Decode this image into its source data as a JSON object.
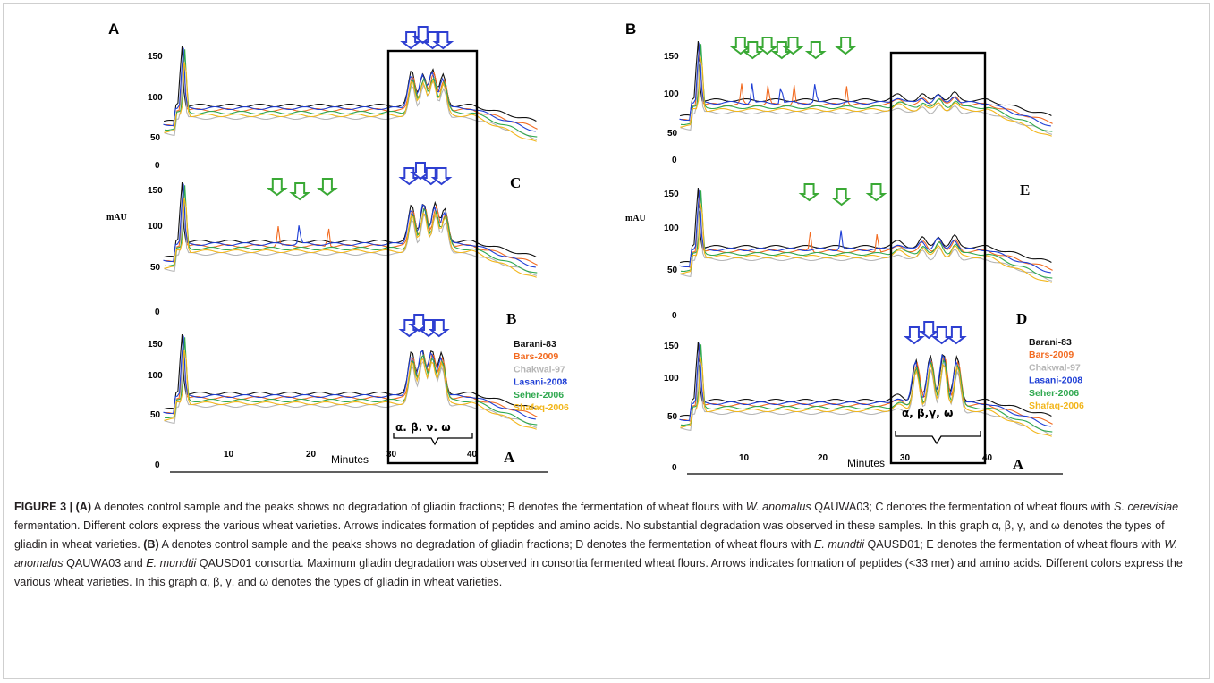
{
  "chart_data": [
    {
      "type": "line",
      "panel": "A",
      "xlabel": "Minutes",
      "ylabel": "mAU",
      "xticks": [
        10,
        20,
        30,
        40
      ],
      "yticks": [
        150,
        100,
        50,
        0
      ],
      "box_label": "α. β. ν. ω",
      "legend": [
        "Barani-83",
        "Bars-2009",
        "Chakwal-97",
        "Lasani-2008",
        "Seher-2006",
        "Shafaq-2006"
      ],
      "traces": [
        {
          "label": "C",
          "green_arrows_at": [],
          "blue_arrows_at": [
            32.5,
            34,
            35.2,
            36.5
          ],
          "peaks": [
            {
              "x": 32.6,
              "h": 38
            },
            {
              "x": 34.0,
              "h": 36
            },
            {
              "x": 35.2,
              "h": 40
            },
            {
              "x": 36.5,
              "h": 34
            }
          ]
        },
        {
          "label": "B",
          "green_arrows_at": [
            16,
            18.8,
            22.2
          ],
          "blue_arrows_at": [
            32.3,
            33.7,
            35.0,
            36.3
          ],
          "peaks": [
            {
              "x": 32.6,
              "h": 40
            },
            {
              "x": 34.1,
              "h": 44
            },
            {
              "x": 35.5,
              "h": 42
            },
            {
              "x": 36.7,
              "h": 36
            }
          ]
        },
        {
          "label": "A",
          "green_arrows_at": [],
          "blue_arrows_at": [
            32.3,
            33.5,
            34.7,
            36.0
          ],
          "peaks": [
            {
              "x": 32.6,
              "h": 46
            },
            {
              "x": 33.9,
              "h": 50
            },
            {
              "x": 35.1,
              "h": 48
            },
            {
              "x": 36.3,
              "h": 44
            }
          ]
        }
      ]
    },
    {
      "type": "line",
      "panel": "B",
      "xlabel": "Minutes",
      "ylabel": "mAU",
      "xticks": [
        10,
        20,
        30,
        40
      ],
      "yticks": [
        150,
        100,
        50,
        0
      ],
      "box_label": "α, β,γ, ω",
      "legend": [
        "Barani-83",
        "Bars-2009",
        "Chakwal-97",
        "Lasani-2008",
        "Seher-2006",
        "Shafaq-2006"
      ],
      "traces": [
        {
          "label": "E",
          "green_arrows_at": [
            9.5,
            11,
            12.8,
            14.6,
            16,
            18.8,
            22.5
          ],
          "blue_arrows_at": [],
          "peaks": [
            {
              "x": 32,
              "h": 6
            },
            {
              "x": 34,
              "h": 8
            },
            {
              "x": 36,
              "h": 8
            }
          ]
        },
        {
          "label": "D",
          "green_arrows_at": [
            18,
            22,
            26.3
          ],
          "blue_arrows_at": [],
          "peaks": [
            {
              "x": 32,
              "h": 10
            },
            {
              "x": 34,
              "h": 12
            },
            {
              "x": 36,
              "h": 12
            }
          ]
        },
        {
          "label": "A",
          "green_arrows_at": [],
          "blue_arrows_at": [
            31,
            32.8,
            34.4,
            36.2
          ],
          "peaks": [
            {
              "x": 31.2,
              "h": 46
            },
            {
              "x": 33.0,
              "h": 50
            },
            {
              "x": 34.6,
              "h": 54
            },
            {
              "x": 36.3,
              "h": 48
            }
          ]
        }
      ]
    }
  ],
  "legend_colors": {
    "Barani-83": "#111111",
    "Bars-2009": "#f26b21",
    "Chakwal-97": "#b5b5b5",
    "Lasani-2008": "#1f3fd6",
    "Seher-2006": "#2fa84f",
    "Shafaq-2006": "#f2b61b"
  },
  "arrow_colors": {
    "green": "#3aa935",
    "blue": "#2e3fd1"
  },
  "caption": {
    "heading": "FIGURE 3 | (A)",
    "a1": " A denotes control sample and the peaks shows no degradation of gliadin fractions; B denotes the fermentation of wheat flours with ",
    "a1i": "W. anomalus",
    "a2": " QAUWA03; C denotes the fermentation of wheat flours with ",
    "a2i": "S. cerevisiae",
    "a3": " fermentation. Different colors express the various wheat varieties. Arrows indicates formation of peptides and amino acids. No substantial degradation was observed in these samples. In this graph α, β, γ, and ω denotes the types of gliadin in wheat varieties. ",
    "b_head": "(B)",
    "b1": " A denotes control sample and the peaks shows no degradation of gliadin fractions; D denotes the fermentation of wheat flours with ",
    "b1i": "E. mundtii",
    "b2": " QAUSD01; E denotes the fermentation of wheat flours with ",
    "b2i": "W. anomalus",
    "b3": " QAUWA03 and ",
    "b3i": "E. mundtii",
    "b4": " QAUSD01 consortia. Maximum gliadin degradation was observed in consortia fermented wheat flours. Arrows indicates formation of peptides (<33 mer) and amino acids. Different colors express the various wheat varieties. In this graph α, β, γ, and ω denotes the types of gliadin in wheat varieties."
  }
}
